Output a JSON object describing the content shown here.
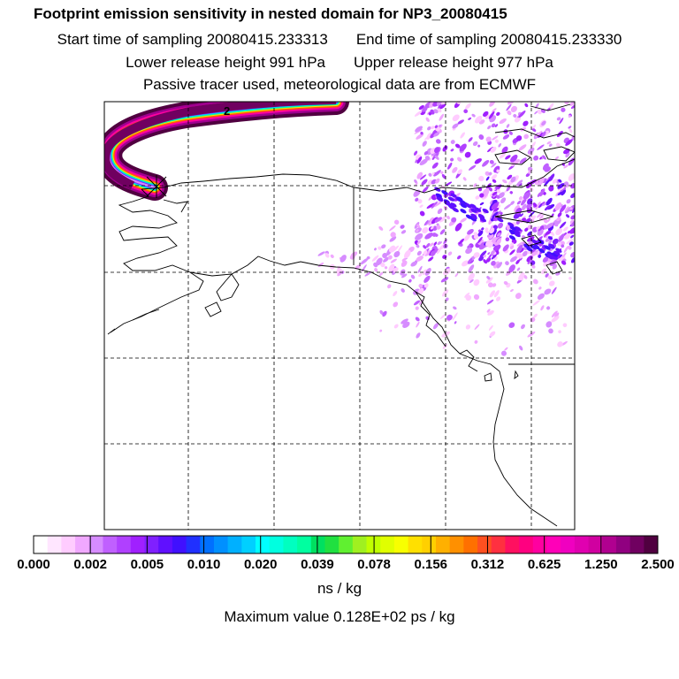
{
  "header": {
    "title": "Footprint emission sensitivity in nested domain for NP3_20080415",
    "start_time": "Start time of sampling 20080415.233313",
    "end_time": "End time of sampling 20080415.233330",
    "lower_height": "Lower release height  991 hPa",
    "upper_height": "Upper release height  977 hPa",
    "tracer_info": "Passive tracer used, meteorological data are from ECMWF"
  },
  "colorbar": {
    "unit": "ns / kg",
    "ticks": [
      "0.000",
      "0.002",
      "0.005",
      "0.010",
      "0.020",
      "0.039",
      "0.078",
      "0.156",
      "0.312",
      "0.625",
      "1.250",
      "2.500"
    ],
    "colors": [
      "#ffffff",
      "#ffe6ff",
      "#ffccff",
      "#f0a8ff",
      "#d68cff",
      "#c060ff",
      "#b040ff",
      "#a020ff",
      "#8020ff",
      "#6010ff",
      "#4010ff",
      "#2030ff",
      "#0070ff",
      "#0090ff",
      "#00b0ff",
      "#00d0ff",
      "#00ffff",
      "#00ffe0",
      "#00ffc0",
      "#00ffa0",
      "#00e060",
      "#20e040",
      "#60f030",
      "#a0f020",
      "#c0ff00",
      "#e0ff00",
      "#f8ff00",
      "#ffe000",
      "#ffd000",
      "#ffb000",
      "#ff9000",
      "#ff7000",
      "#ff5020",
      "#ff3040",
      "#ff1060",
      "#ff0080",
      "#ff00a0",
      "#ff00b8",
      "#f000c0",
      "#e000b0",
      "#d000a0",
      "#b00090",
      "#900080",
      "#700060",
      "#500040"
    ]
  },
  "max_value": "Maximum value  0.128E+02 ps / kg",
  "map": {
    "marker_label": "2",
    "plume_colors": [
      "#500040",
      "#a00090",
      "#ff00a0",
      "#ff6000",
      "#ffe000",
      "#00ffa0",
      "#00d0ff",
      "#8020ff",
      "#d68cff"
    ],
    "grid_color": "#000000",
    "coast_color": "#000000"
  }
}
